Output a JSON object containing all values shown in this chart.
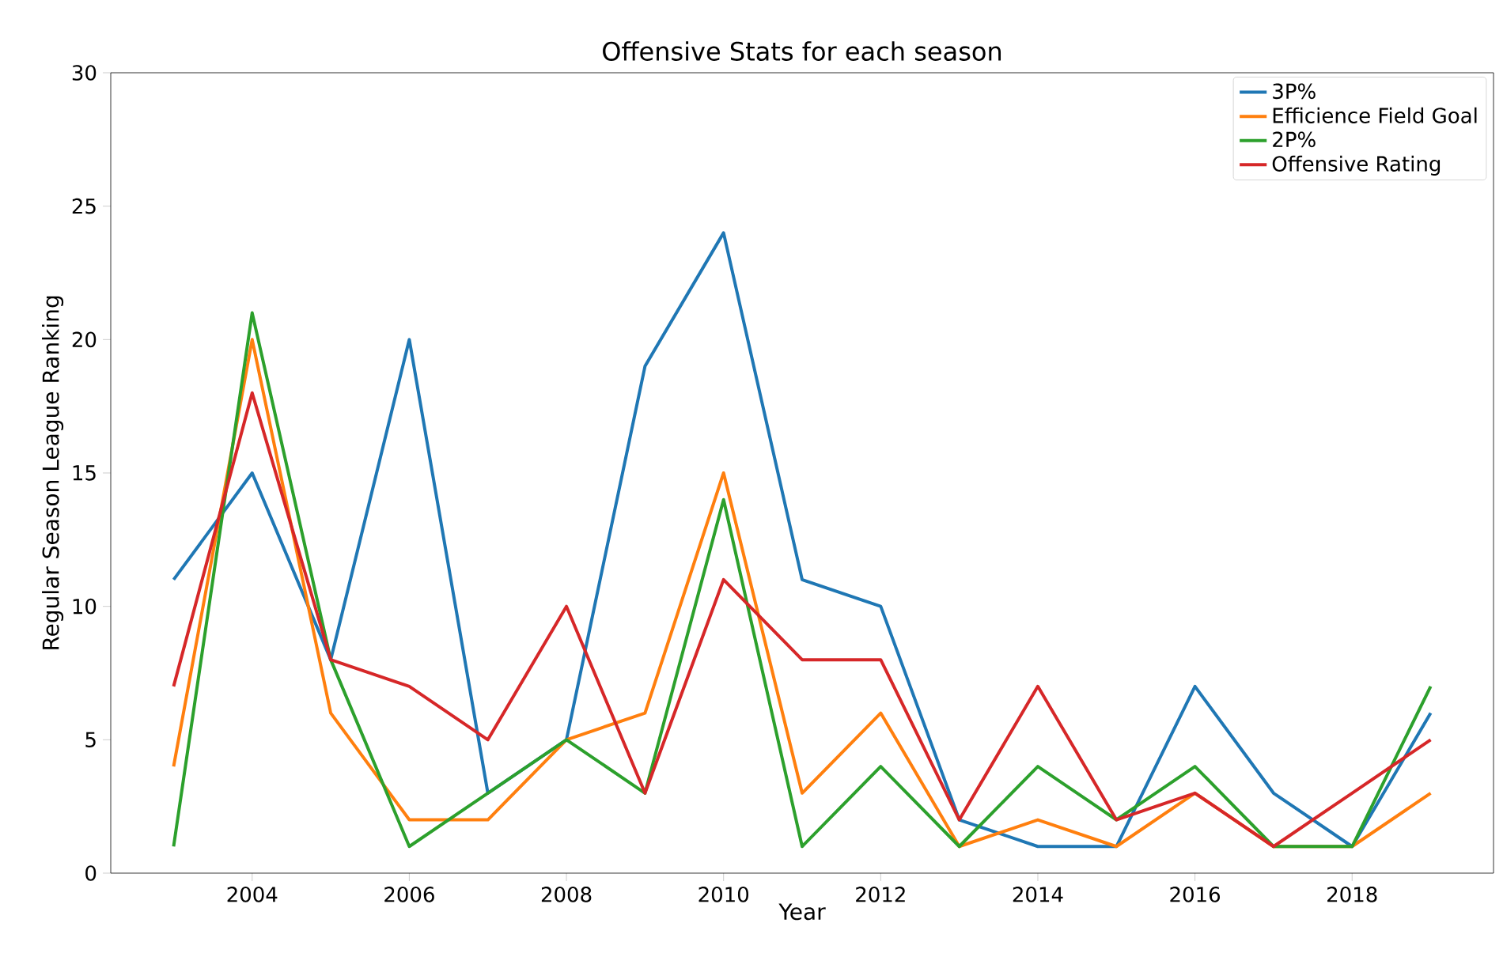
{
  "chart_data": {
    "type": "line",
    "title": "Offensive Stats for each season",
    "xlabel": "Year",
    "ylabel": "Regular Season League Ranking",
    "x": [
      2003,
      2004,
      2005,
      2006,
      2007,
      2008,
      2009,
      2010,
      2011,
      2012,
      2013,
      2014,
      2015,
      2016,
      2017,
      2018,
      2019
    ],
    "series": [
      {
        "name": "3P%",
        "color": "#1f77b4",
        "values": [
          11,
          15,
          8,
          20,
          3,
          5,
          19,
          24,
          11,
          10,
          2,
          1,
          1,
          7,
          3,
          1,
          6
        ]
      },
      {
        "name": "Efficience Field Goal",
        "color": "#ff7f0e",
        "values": [
          4,
          20,
          6,
          2,
          2,
          5,
          6,
          15,
          3,
          6,
          1,
          2,
          1,
          3,
          1,
          1,
          3
        ]
      },
      {
        "name": "2P%",
        "color": "#2ca02c",
        "values": [
          1,
          21,
          8,
          1,
          3,
          5,
          3,
          14,
          1,
          4,
          1,
          4,
          2,
          4,
          1,
          1,
          7
        ]
      },
      {
        "name": "Offensive Rating",
        "color": "#d62728",
        "values": [
          7,
          18,
          8,
          7,
          5,
          10,
          3,
          11,
          8,
          8,
          2,
          7,
          2,
          3,
          1,
          3,
          5
        ]
      }
    ],
    "xlim": [
      2002.2,
      2019.8
    ],
    "ylim": [
      0,
      30
    ],
    "xticks": [
      2004,
      2006,
      2008,
      2010,
      2012,
      2014,
      2016,
      2018
    ],
    "yticks": [
      0,
      5,
      10,
      15,
      20,
      25,
      30
    ],
    "grid": false,
    "legend": "top right"
  }
}
